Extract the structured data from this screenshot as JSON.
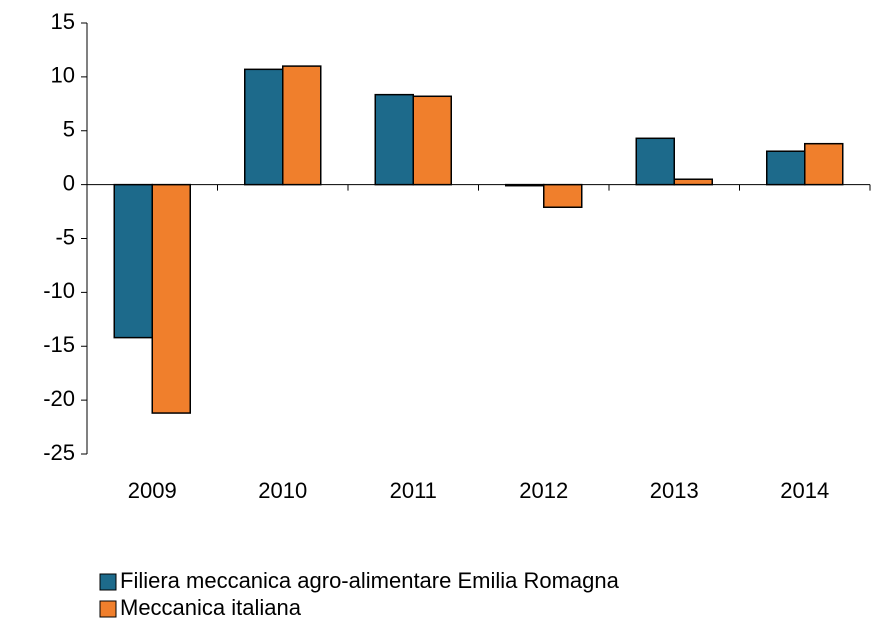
{
  "chart_data": {
    "type": "bar",
    "categories": [
      "2009",
      "2010",
      "2011",
      "2012",
      "2013",
      "2014"
    ],
    "series": [
      {
        "name": "Filiera meccanica agro-alimentare Emilia Romagna",
        "color": "#1d6a8b",
        "values": [
          -14.2,
          10.7,
          8.35,
          -0.1,
          4.3,
          3.1
        ]
      },
      {
        "name": "Meccanica italiana",
        "color": "#f07f2c",
        "values": [
          -21.2,
          11.0,
          8.2,
          -2.1,
          0.5,
          3.8
        ]
      }
    ],
    "ylim": [
      -25,
      15
    ],
    "yticks": [
      -25,
      -20,
      -15,
      -10,
      -5,
      0,
      5,
      10,
      15
    ],
    "grid": false
  }
}
